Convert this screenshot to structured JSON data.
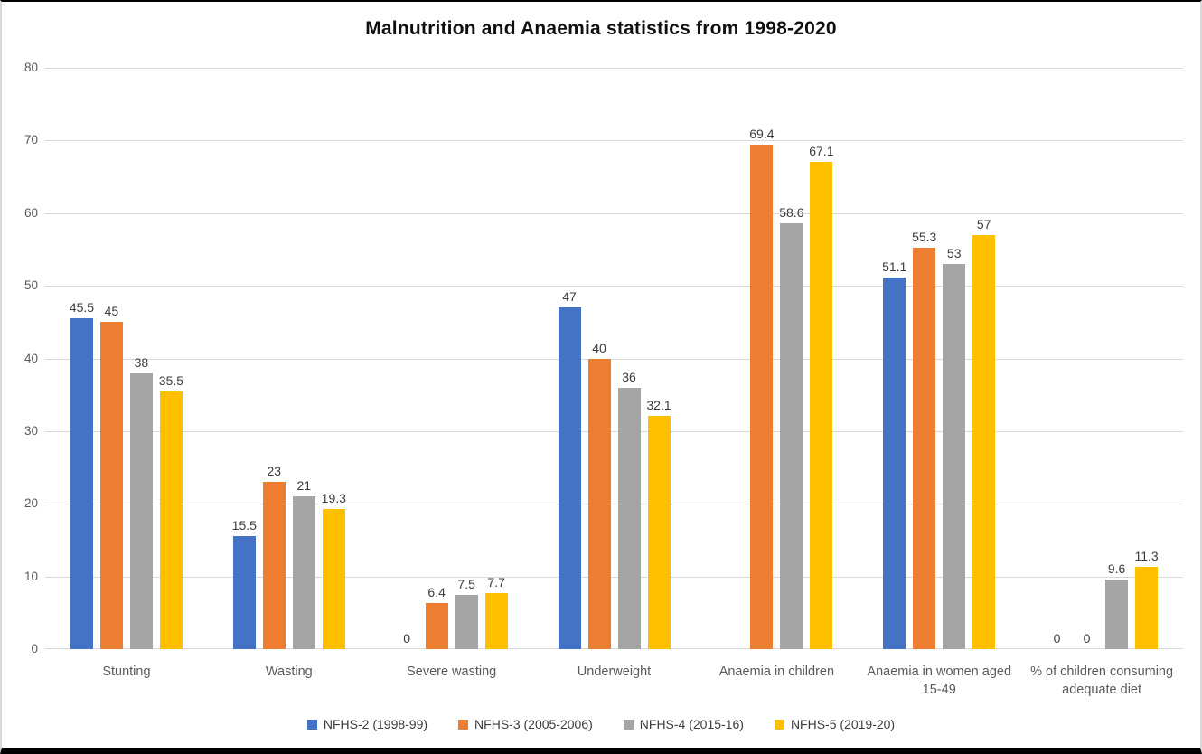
{
  "chart_data": {
    "type": "bar",
    "title": "Malnutrition and Anaemia statistics from 1998-2020",
    "categories": [
      "Stunting",
      "Wasting",
      "Severe wasting",
      "Underweight",
      "Anaemia in children",
      "Anaemia in women aged 15-49",
      "% of children consuming adequate diet"
    ],
    "series": [
      {
        "name": "NFHS-2 (1998-99)",
        "color": "#4472C4",
        "values": [
          45.5,
          15.5,
          0,
          47,
          null,
          51.1,
          0
        ]
      },
      {
        "name": "NFHS-3 (2005-2006)",
        "color": "#ED7D31",
        "values": [
          45,
          23,
          6.4,
          40,
          69.4,
          55.3,
          0
        ]
      },
      {
        "name": "NFHS-4 (2015-16)",
        "color": "#A5A5A5",
        "values": [
          38,
          21,
          7.5,
          36,
          58.6,
          53,
          9.6
        ]
      },
      {
        "name": "NFHS-5 (2019-20)",
        "color": "#FFC000",
        "values": [
          35.5,
          19.3,
          7.7,
          32.1,
          67.1,
          57,
          11.3
        ]
      }
    ],
    "xlabel": "",
    "ylabel": "",
    "ylim": [
      0,
      80
    ],
    "yticks": [
      0,
      10,
      20,
      30,
      40,
      50,
      60,
      70,
      80
    ],
    "grid": true,
    "legend_position": "bottom",
    "colors": {
      "gridline": "#d9d9d9",
      "axis_text": "#595959",
      "value_label": "#3b3b3b",
      "title_text": "#0f0f0f"
    }
  }
}
